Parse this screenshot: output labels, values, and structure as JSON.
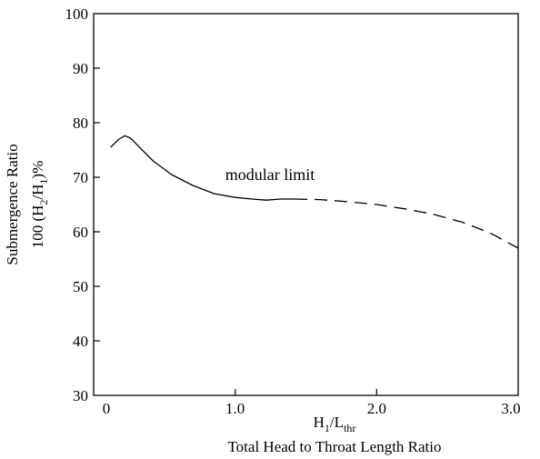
{
  "chart_data": {
    "type": "line",
    "title": "",
    "xlabel_line1": "H1/Lthr",
    "xlabel_line2": "Total Head to Throat Length Ratio",
    "ylabel_line1": "Submergence Ratio",
    "ylabel_line2": "100 (H2/H1)%",
    "xlim": [
      0,
      3.0
    ],
    "ylim": [
      30,
      100
    ],
    "x_ticks": [
      {
        "value": 0,
        "label": "0"
      },
      {
        "value": 1.0,
        "label": "1.0"
      },
      {
        "value": 2.0,
        "label": "2.0"
      },
      {
        "value": 3.0,
        "label": "3.0"
      }
    ],
    "y_ticks": [
      {
        "value": 30,
        "label": "30"
      },
      {
        "value": 40,
        "label": "40"
      },
      {
        "value": 50,
        "label": "50"
      },
      {
        "value": 60,
        "label": "60"
      },
      {
        "value": 70,
        "label": "70"
      },
      {
        "value": 80,
        "label": "80"
      },
      {
        "value": 90,
        "label": "90"
      },
      {
        "value": 100,
        "label": "100"
      }
    ],
    "annotations": [
      {
        "text": "modular limit",
        "x": 0.93,
        "y": 69.5
      }
    ],
    "series": [
      {
        "style": "solid",
        "x": [
          0.12,
          0.18,
          0.22,
          0.26,
          0.32,
          0.42,
          0.55,
          0.7,
          0.85,
          1.0,
          1.12,
          1.22,
          1.32,
          1.42
        ],
        "y": [
          75.5,
          77.0,
          77.6,
          77.2,
          75.6,
          73.0,
          70.5,
          68.5,
          67.0,
          66.3,
          66.0,
          65.8,
          66.0,
          66.0
        ]
      },
      {
        "style": "dashed",
        "x": [
          1.42,
          1.6,
          1.8,
          2.0,
          2.2,
          2.4,
          2.6,
          2.8,
          3.0
        ],
        "y": [
          66.0,
          65.9,
          65.5,
          65.0,
          64.2,
          63.2,
          61.8,
          59.8,
          57.0
        ]
      }
    ]
  }
}
